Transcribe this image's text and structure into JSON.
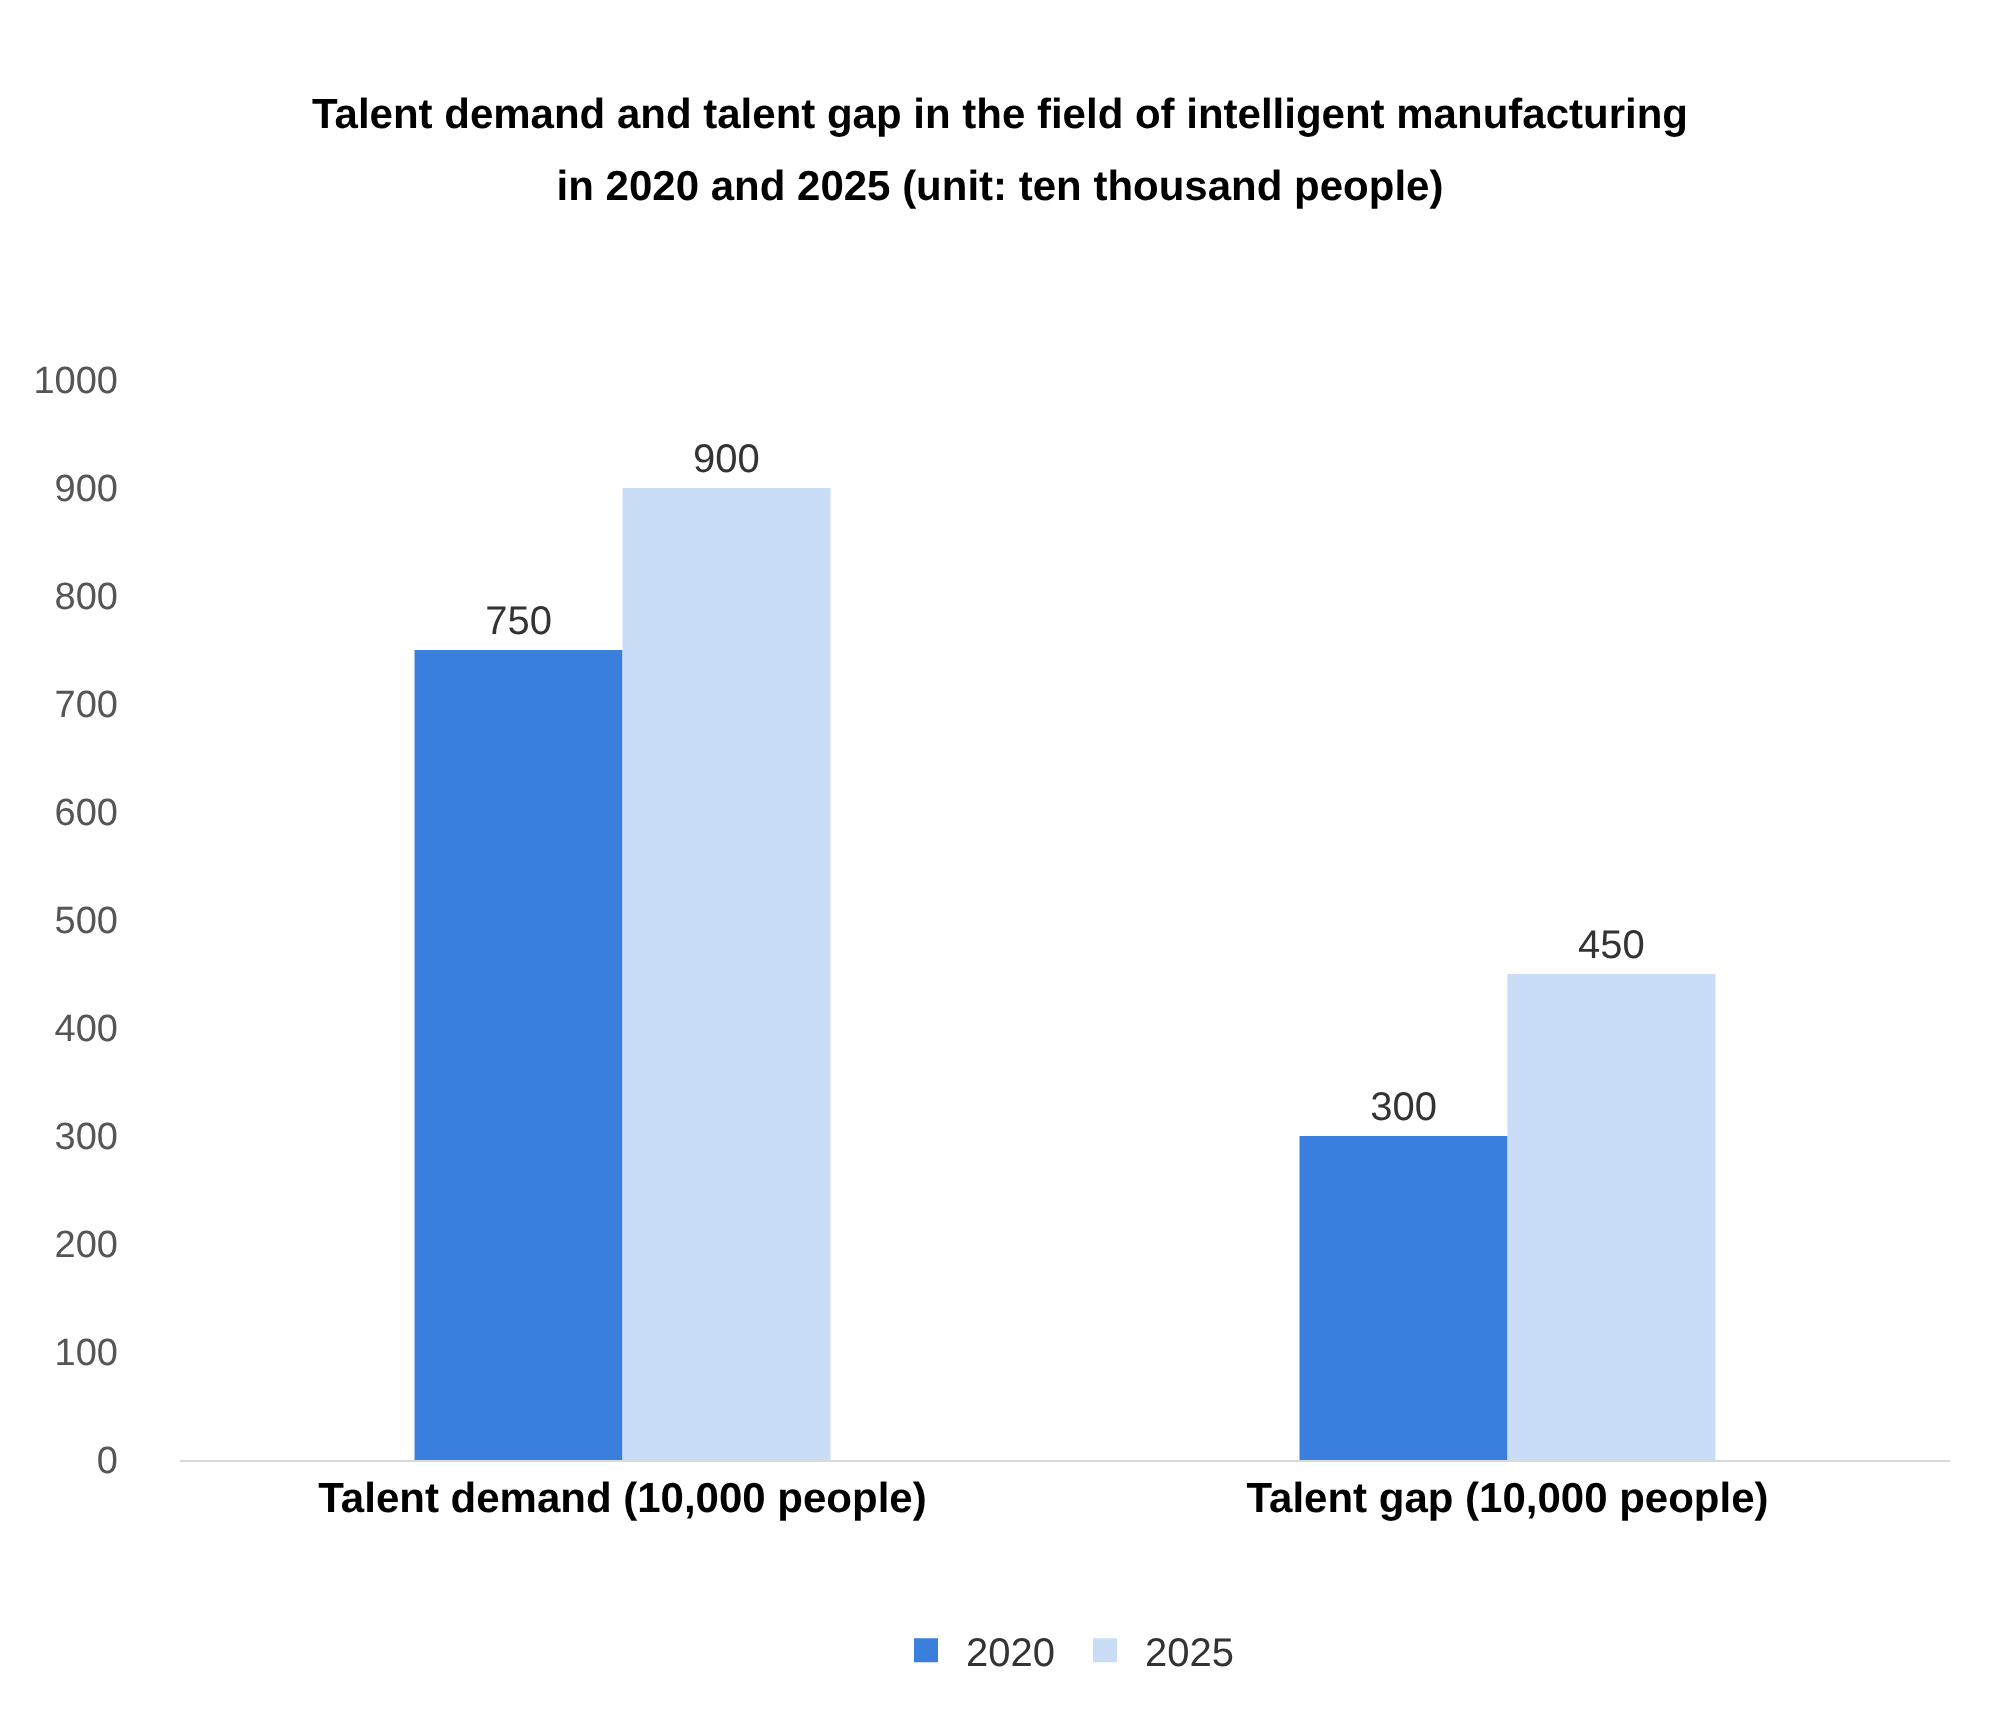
{
  "chart_data": {
    "type": "bar",
    "title": "Talent demand and talent gap in the field of intelligent manufacturing in 2020 and 2025 (unit: ten thousand people)",
    "categories": [
      "Talent demand (10,000 people)",
      "Talent gap (10,000 people)"
    ],
    "series": [
      {
        "name": "2020",
        "color": "#3b7fdc",
        "values": [
          750,
          300
        ]
      },
      {
        "name": "2025",
        "color": "#c9def6",
        "values": [
          900,
          450
        ]
      }
    ],
    "ylim": [
      0,
      1000
    ],
    "yticks": [
      0,
      100,
      200,
      300,
      400,
      500,
      600,
      700,
      800,
      900,
      1000
    ],
    "grid": false,
    "legend": "bottom",
    "data_labels": true
  }
}
